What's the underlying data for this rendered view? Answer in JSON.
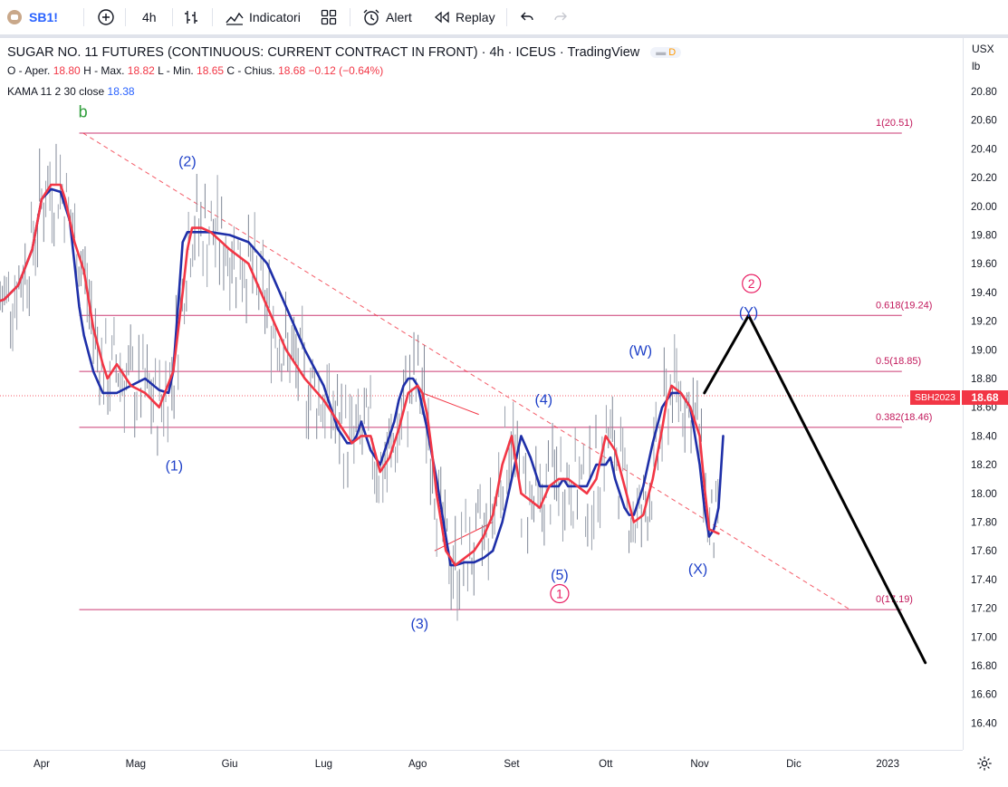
{
  "toolbar": {
    "symbol": "SB1!",
    "interval": "4h",
    "indicators_label": "Indicatori",
    "alert_label": "Alert",
    "replay_label": "Replay"
  },
  "legend": {
    "title": "SUGAR NO. 11 FUTURES (CONTINUOUS: CURRENT CONTRACT IN FRONT) · 4h · ICEUS · TradingView",
    "badge": "D",
    "o_label": "O - Aper.",
    "o": "18.80",
    "h_label": "H - Max.",
    "h": "18.82",
    "l_label": "L - Min.",
    "l": "18.65",
    "c_label": "C - Chius.",
    "c": "18.68",
    "change": "−0.12 (−0.64%)",
    "kama_label": "KAMA 11 2 30 close",
    "kama_value": "18.38"
  },
  "scale": {
    "currency": "USX",
    "unit": "lb",
    "last_price": "18.68",
    "last_symbol": "SBH2023"
  },
  "colors": {
    "kama": "#1e2fa8",
    "red_line": "#f23645",
    "fib": "#c2185b",
    "wave_blue": "#1e40c8",
    "wave_pink": "#e91e63",
    "green": "#2e9e3a",
    "projection": "#000000",
    "last_price": "#f23645"
  },
  "chart_data": {
    "type": "line",
    "title": "SUGAR NO. 11 FUTURES (CONTINUOUS: CURRENT CONTRACT IN FRONT)",
    "xlabel": "",
    "ylabel": "",
    "ylim": [
      16.2,
      20.9
    ],
    "grid": false,
    "y_ticks": [
      "20.80",
      "20.60",
      "20.40",
      "20.20",
      "20.00",
      "19.80",
      "19.60",
      "19.40",
      "19.20",
      "19.00",
      "18.80",
      "18.60",
      "18.40",
      "18.20",
      "18.00",
      "17.80",
      "17.60",
      "17.40",
      "17.20",
      "17.00",
      "16.80",
      "16.60",
      "16.40"
    ],
    "x_ticks": [
      {
        "label": "Apr",
        "t": 1.0
      },
      {
        "label": "Mag",
        "t": 2.0
      },
      {
        "label": "Giu",
        "t": 3.0
      },
      {
        "label": "Lug",
        "t": 4.0
      },
      {
        "label": "Ago",
        "t": 5.0
      },
      {
        "label": "Set",
        "t": 6.0
      },
      {
        "label": "Ott",
        "t": 7.0
      },
      {
        "label": "Nov",
        "t": 8.0
      },
      {
        "label": "Dic",
        "t": 9.0
      },
      {
        "label": "2023",
        "t": 10.0
      }
    ],
    "fib_levels": [
      {
        "label": "1(20.51)",
        "value": 20.51
      },
      {
        "label": "0.618(19.24)",
        "value": 19.24
      },
      {
        "label": "0.5(18.85)",
        "value": 18.85
      },
      {
        "label": "0.382(18.46)",
        "value": 18.46
      },
      {
        "label": "0(17.19)",
        "value": 17.19
      }
    ],
    "wave_labels": [
      {
        "text": "b",
        "t": 1.44,
        "v": 20.62,
        "style": "green"
      },
      {
        "text": "(2)",
        "t": 2.55,
        "v": 20.28,
        "style": "blue"
      },
      {
        "text": "(1)",
        "t": 2.41,
        "v": 18.16,
        "style": "blue"
      },
      {
        "text": "(3)",
        "t": 5.02,
        "v": 17.06,
        "style": "blue"
      },
      {
        "text": "(4)",
        "t": 6.34,
        "v": 18.62,
        "style": "blue"
      },
      {
        "text": "(5)",
        "t": 6.51,
        "v": 17.4,
        "style": "blue"
      },
      {
        "text": "1",
        "t": 6.51,
        "v": 17.27,
        "style": "pink-circle"
      },
      {
        "text": "(W)",
        "t": 7.37,
        "v": 18.96,
        "style": "blue"
      },
      {
        "text": "(X)",
        "t": 7.98,
        "v": 17.44,
        "style": "blue"
      },
      {
        "text": "(Y)",
        "t": 8.52,
        "v": 19.23,
        "style": "blue"
      },
      {
        "text": "2",
        "t": 8.55,
        "v": 19.43,
        "style": "pink-circle"
      }
    ],
    "series": [
      {
        "name": "KAMA 11 2 30 close",
        "x": [
          0.0,
          0.1,
          0.2,
          0.3,
          0.45,
          0.6,
          0.75,
          0.9,
          1.0,
          1.1,
          1.2,
          1.3,
          1.35,
          1.4,
          1.45,
          1.55,
          1.65,
          1.8,
          1.95,
          2.1,
          2.25,
          2.35,
          2.4,
          2.45,
          2.5,
          2.55,
          2.6,
          2.7,
          2.8,
          3.0,
          3.2,
          3.4,
          3.6,
          3.8,
          4.0,
          4.1,
          4.15,
          4.2,
          4.25,
          4.3,
          4.35,
          4.4,
          4.5,
          4.6,
          4.7,
          4.75,
          4.8,
          4.85,
          4.9,
          4.95,
          5.0,
          5.1,
          5.2,
          5.3,
          5.35,
          5.4,
          5.5,
          5.6,
          5.7,
          5.8,
          5.9,
          6.0,
          6.1,
          6.2,
          6.3,
          6.4,
          6.5,
          6.55,
          6.6,
          6.7,
          6.8,
          6.9,
          7.0,
          7.05,
          7.1,
          7.2,
          7.25,
          7.3,
          7.4,
          7.5,
          7.6,
          7.7,
          7.8,
          7.9,
          8.0,
          8.05,
          8.1,
          8.15,
          8.2,
          8.25
        ],
        "values": [
          18.95,
          19.05,
          19.15,
          19.25,
          19.32,
          19.35,
          19.45,
          19.7,
          20.05,
          20.12,
          20.1,
          19.9,
          19.6,
          19.3,
          19.1,
          18.85,
          18.7,
          18.7,
          18.75,
          18.8,
          18.72,
          18.7,
          18.85,
          19.3,
          19.75,
          19.82,
          19.82,
          19.82,
          19.82,
          19.8,
          19.75,
          19.6,
          19.3,
          19.0,
          18.75,
          18.55,
          18.45,
          18.4,
          18.35,
          18.35,
          18.4,
          18.5,
          18.3,
          18.2,
          18.4,
          18.5,
          18.65,
          18.75,
          18.8,
          18.8,
          18.75,
          18.45,
          18.1,
          17.7,
          17.5,
          17.5,
          17.52,
          17.52,
          17.55,
          17.6,
          17.8,
          18.1,
          18.4,
          18.25,
          18.05,
          18.05,
          18.05,
          18.1,
          18.05,
          18.05,
          18.05,
          18.2,
          18.2,
          18.25,
          18.1,
          17.9,
          17.85,
          17.85,
          18.05,
          18.35,
          18.6,
          18.7,
          18.7,
          18.6,
          18.2,
          17.9,
          17.7,
          17.75,
          17.9,
          18.4
        ]
      },
      {
        "name": "red line",
        "x": [
          0.0,
          0.1,
          0.2,
          0.3,
          0.45,
          0.6,
          0.75,
          0.9,
          1.0,
          1.1,
          1.2,
          1.25,
          1.3,
          1.35,
          1.45,
          1.55,
          1.65,
          1.7,
          1.8,
          1.95,
          2.1,
          2.25,
          2.4,
          2.5,
          2.55,
          2.6,
          2.7,
          2.8,
          3.0,
          3.2,
          3.4,
          3.6,
          3.8,
          4.0,
          4.1,
          4.2,
          4.3,
          4.4,
          4.5,
          4.6,
          4.7,
          4.8,
          4.9,
          5.0,
          5.05,
          5.1,
          5.15,
          5.2,
          5.3,
          5.4,
          5.5,
          5.6,
          5.7,
          5.8,
          5.9,
          6.0,
          6.1,
          6.2,
          6.3,
          6.4,
          6.5,
          6.6,
          6.7,
          6.8,
          6.9,
          7.0,
          7.1,
          7.2,
          7.3,
          7.4,
          7.5,
          7.6,
          7.65,
          7.7,
          7.8,
          7.9,
          8.0,
          8.05,
          8.1,
          8.2
        ],
        "values": [
          18.95,
          19.05,
          19.15,
          19.25,
          19.32,
          19.35,
          19.45,
          19.7,
          20.05,
          20.15,
          20.15,
          20.05,
          19.9,
          19.75,
          19.55,
          19.15,
          18.9,
          18.8,
          18.9,
          18.75,
          18.7,
          18.6,
          18.85,
          19.4,
          19.7,
          19.85,
          19.85,
          19.82,
          19.7,
          19.6,
          19.3,
          19.0,
          18.8,
          18.65,
          18.55,
          18.45,
          18.35,
          18.4,
          18.4,
          18.15,
          18.25,
          18.45,
          18.7,
          18.75,
          18.7,
          18.55,
          18.3,
          18.0,
          17.6,
          17.5,
          17.55,
          17.6,
          17.7,
          17.85,
          18.2,
          18.4,
          18.0,
          17.95,
          17.9,
          18.05,
          18.1,
          18.1,
          18.05,
          18.0,
          18.1,
          18.4,
          18.3,
          18.05,
          17.8,
          17.85,
          18.1,
          18.45,
          18.65,
          18.75,
          18.7,
          18.6,
          18.4,
          18.05,
          17.75,
          17.72
        ]
      },
      {
        "name": "projection",
        "x": [
          8.05,
          8.52,
          10.4
        ],
        "values": [
          18.7,
          19.24,
          16.82
        ]
      }
    ],
    "trendline": {
      "from": {
        "t": 1.44,
        "v": 20.51
      },
      "to": {
        "t": 9.6,
        "v": 17.19
      }
    },
    "triangle": [
      {
        "t": 5.05,
        "v": 18.7
      },
      {
        "t": 5.65,
        "v": 18.55
      },
      {
        "t": 5.8,
        "v": 17.8
      },
      {
        "t": 5.18,
        "v": 17.6
      }
    ]
  }
}
